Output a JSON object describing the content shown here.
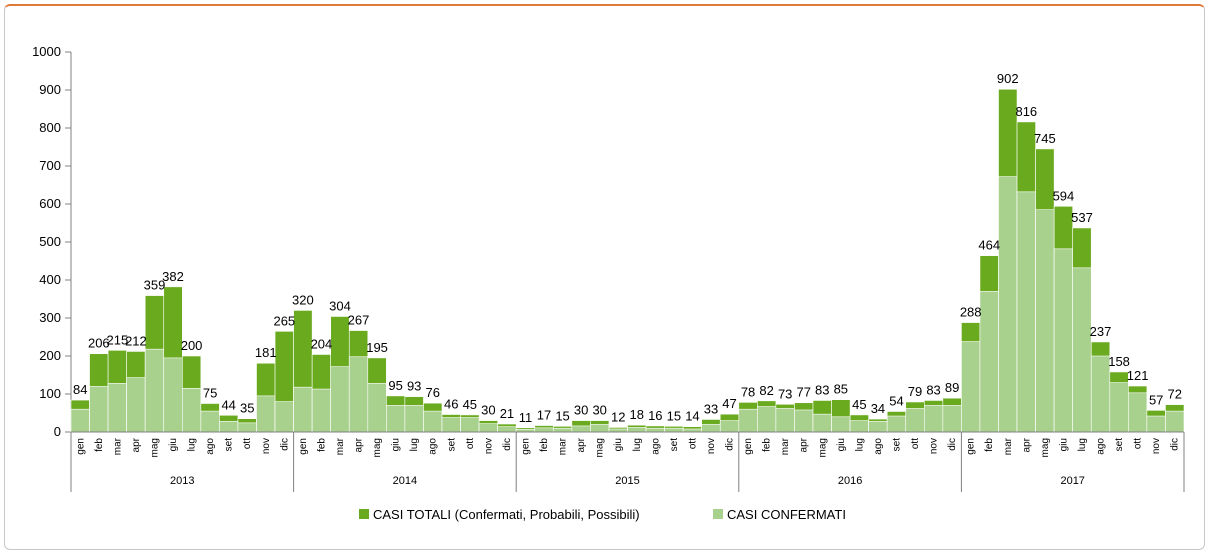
{
  "chart_data": {
    "type": "bar",
    "stacked": "overlay",
    "ylim": [
      0,
      1000
    ],
    "yticks": [
      0,
      100,
      200,
      300,
      400,
      500,
      600,
      700,
      800,
      900,
      1000
    ],
    "grid": false,
    "legend_position": "bottom",
    "years": [
      {
        "label": "2013",
        "months": [
          "gen",
          "feb",
          "mar",
          "apr",
          "mag",
          "giu",
          "lug",
          "ago",
          "set",
          "ott",
          "nov",
          "dic"
        ]
      },
      {
        "label": "2014",
        "months": [
          "gen",
          "feb",
          "mar",
          "apr",
          "mag",
          "giu",
          "lug",
          "ago",
          "set",
          "ott",
          "nov",
          "dic"
        ]
      },
      {
        "label": "2015",
        "months": [
          "gen",
          "feb",
          "mar",
          "apr",
          "mag",
          "giu",
          "lug",
          "ago",
          "set",
          "ott",
          "nov",
          "dic"
        ]
      },
      {
        "label": "2016",
        "months": [
          "gen",
          "feb",
          "mar",
          "apr",
          "mag",
          "giu",
          "lug",
          "ago",
          "set",
          "ott",
          "nov",
          "dic"
        ]
      },
      {
        "label": "2017",
        "months": [
          "gen",
          "feb",
          "mar",
          "apr",
          "mag",
          "giu",
          "lug",
          "ago",
          "set",
          "ott",
          "nov",
          "dic"
        ]
      }
    ],
    "series": [
      {
        "name": "CASI TOTALI (Confermati, Probabili, Possibili)",
        "color": "#6aaa1e",
        "values": [
          84,
          206,
          215,
          212,
          359,
          382,
          200,
          75,
          44,
          35,
          181,
          265,
          320,
          204,
          304,
          267,
          195,
          95,
          93,
          76,
          46,
          45,
          30,
          21,
          11,
          17,
          15,
          30,
          30,
          12,
          18,
          16,
          15,
          14,
          33,
          47,
          78,
          82,
          73,
          77,
          83,
          85,
          45,
          34,
          54,
          79,
          83,
          89,
          288,
          464,
          902,
          816,
          745,
          594,
          537,
          237,
          158,
          121,
          57,
          72
        ]
      },
      {
        "name": "CASI CONFERMATI",
        "color": "#a9d18e",
        "values": [
          60,
          120,
          128,
          143,
          218,
          195,
          115,
          55,
          28,
          24,
          95,
          80,
          118,
          113,
          172,
          198,
          128,
          70,
          70,
          55,
          38,
          38,
          22,
          14,
          7,
          11,
          10,
          16,
          20,
          8,
          12,
          10,
          10,
          8,
          20,
          30,
          60,
          67,
          62,
          58,
          47,
          40,
          30,
          28,
          42,
          62,
          70,
          70,
          238,
          370,
          672,
          632,
          585,
          482,
          432,
          200,
          130,
          103,
          42,
          55
        ]
      }
    ]
  }
}
